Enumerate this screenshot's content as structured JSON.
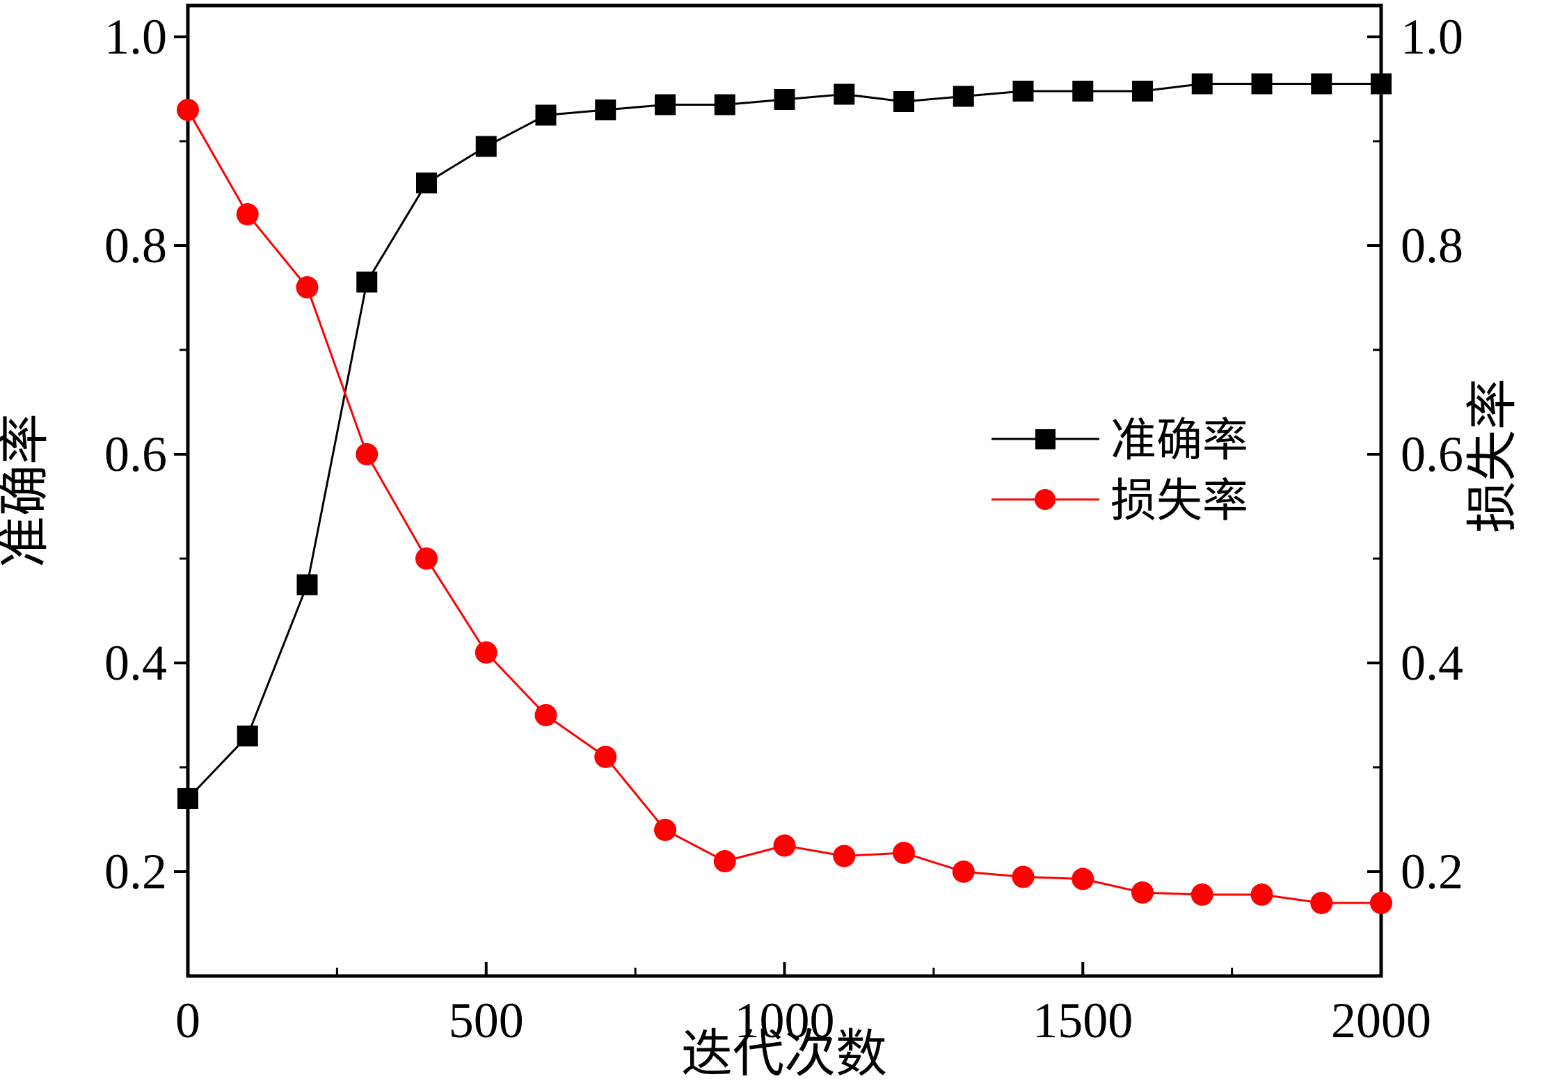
{
  "chart_data": {
    "type": "line",
    "xlabel": "迭代次数",
    "ylabel_left": "准确率",
    "ylabel_right": "损失率",
    "xlim": [
      0,
      2000
    ],
    "ylim": [
      0.1,
      1.03
    ],
    "x_ticks": [
      0,
      500,
      1000,
      1500,
      2000
    ],
    "x_tick_labels": [
      "0",
      "500",
      "1000",
      "1500",
      "2000"
    ],
    "x_minor_ticks": [
      250,
      750,
      1250,
      1750
    ],
    "y_ticks": [
      0.2,
      0.4,
      0.6,
      0.8,
      1.0
    ],
    "y_tick_labels": [
      "0.2",
      "0.4",
      "0.6",
      "0.8",
      "1.0"
    ],
    "y_minor_ticks": [
      0.3,
      0.5,
      0.7,
      0.9
    ],
    "grid": false,
    "legend_position": "center-right",
    "x": [
      0,
      100,
      200,
      300,
      400,
      500,
      600,
      700,
      800,
      900,
      1000,
      1100,
      1200,
      1300,
      1400,
      1500,
      1600,
      1700,
      1800,
      1900,
      2000
    ],
    "series": [
      {
        "name": "准确率",
        "axis": "left",
        "color": "#000000",
        "marker": "square",
        "values": [
          0.27,
          0.33,
          0.475,
          0.765,
          0.86,
          0.895,
          0.925,
          0.93,
          0.935,
          0.935,
          0.94,
          0.945,
          0.938,
          0.943,
          0.948,
          0.948,
          0.948,
          0.955,
          0.955,
          0.955,
          0.955
        ]
      },
      {
        "name": "损失率",
        "axis": "right",
        "color": "#ff0000",
        "marker": "circle",
        "values": [
          0.93,
          0.83,
          0.76,
          0.6,
          0.5,
          0.41,
          0.35,
          0.31,
          0.24,
          0.21,
          0.225,
          0.215,
          0.218,
          0.2,
          0.195,
          0.193,
          0.18,
          0.178,
          0.178,
          0.17,
          0.17
        ]
      }
    ]
  }
}
